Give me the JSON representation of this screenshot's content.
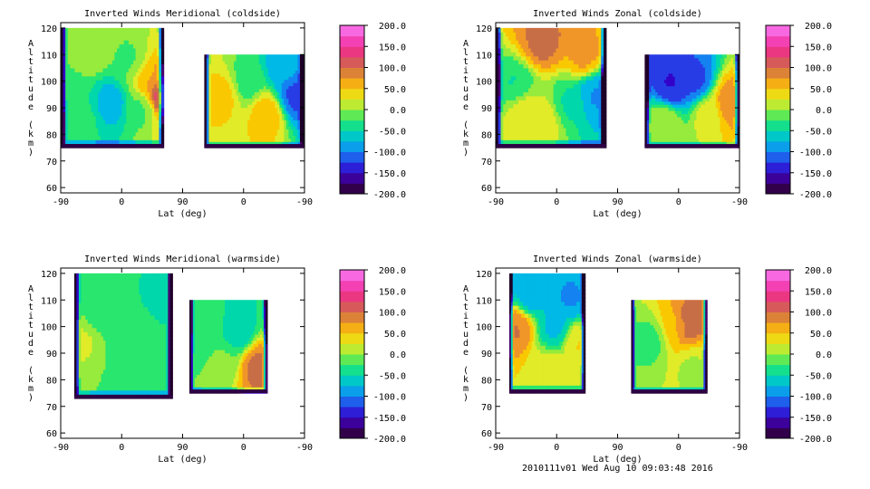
{
  "footer_text": "2010111v01 Wed Aug 10 09:03:48 2016",
  "chart_data": [
    {
      "type": "heatmap",
      "title": "Inverted Winds Meridional (coldside)",
      "xlabel": "Lat (deg)",
      "ylabel": "Altitude (km)",
      "x_ticks": [
        "-90",
        "0",
        "90",
        "0",
        "-90"
      ],
      "y_ticks": [
        "60",
        "70",
        "80",
        "90",
        "100",
        "110",
        "120"
      ],
      "ylim": [
        58,
        122
      ],
      "colorbar_ticks": [
        "200.0",
        "150.0",
        "100.0",
        "50.0",
        "0.0",
        "-50.0",
        "-100.0",
        "-150.0",
        "-200.0"
      ],
      "colorbar_range": [
        -200,
        200
      ],
      "regions": [
        {
          "x_range": [
            -90,
            62
          ],
          "y_range": [
            75,
            120
          ],
          "blobs": [
            {
              "x": -82,
              "y": 96,
              "v": -20
            },
            {
              "x": -45,
              "y": 112,
              "v": 5
            },
            {
              "x": 10,
              "y": 108,
              "v": -15
            },
            {
              "x": -15,
              "y": 92,
              "v": -75
            },
            {
              "x": 30,
              "y": 90,
              "v": -20
            },
            {
              "x": -60,
              "y": 85,
              "v": -30
            },
            {
              "x": 42,
              "y": 100,
              "v": 60
            },
            {
              "x": 58,
              "y": 95,
              "v": 145
            }
          ]
        },
        {
          "x_range": [
            122,
            270
          ],
          "y_range": [
            75,
            110
          ],
          "blobs": [
            {
              "x": 150,
              "y": 95,
              "v": 45
            },
            {
              "x": 185,
              "y": 100,
              "v": -25
            },
            {
              "x": 215,
              "y": 88,
              "v": 55
            },
            {
              "x": 255,
              "y": 95,
              "v": -120
            },
            {
              "x": 240,
              "y": 105,
              "v": -80
            }
          ]
        }
      ]
    },
    {
      "type": "heatmap",
      "title": "Inverted Winds Zonal (coldside)",
      "xlabel": "Lat (deg)",
      "ylabel": "Altitude (km)",
      "x_ticks": [
        "-90",
        "0",
        "90",
        "0",
        "-90"
      ],
      "y_ticks": [
        "60",
        "70",
        "80",
        "90",
        "100",
        "110",
        "120"
      ],
      "ylim": [
        58,
        122
      ],
      "colorbar_ticks": [
        "200.0",
        "150.0",
        "100.0",
        "50.0",
        "0.0",
        "-50.0",
        "-100.0",
        "-150.0",
        "-200.0"
      ],
      "colorbar_range": [
        -200,
        200
      ],
      "regions": [
        {
          "x_range": [
            -90,
            73
          ],
          "y_range": [
            75,
            120
          ],
          "blobs": [
            {
              "x": -20,
              "y": 115,
              "v": 95
            },
            {
              "x": 40,
              "y": 110,
              "v": 70
            },
            {
              "x": -60,
              "y": 98,
              "v": -40
            },
            {
              "x": -50,
              "y": 90,
              "v": 30
            },
            {
              "x": 20,
              "y": 92,
              "v": -40
            },
            {
              "x": -20,
              "y": 85,
              "v": 25
            },
            {
              "x": 55,
              "y": 95,
              "v": -90
            }
          ]
        },
        {
          "x_range": [
            130,
            270
          ],
          "y_range": [
            75,
            110
          ],
          "blobs": [
            {
              "x": 170,
              "y": 98,
              "v": -140
            },
            {
              "x": 205,
              "y": 100,
              "v": -120
            },
            {
              "x": 225,
              "y": 88,
              "v": 25
            },
            {
              "x": 255,
              "y": 92,
              "v": 85
            },
            {
              "x": 160,
              "y": 85,
              "v": 10
            }
          ]
        }
      ]
    },
    {
      "type": "heatmap",
      "title": "Inverted Winds Meridional (warmside)",
      "xlabel": "Lat (deg)",
      "ylabel": "Altitude (km)",
      "x_ticks": [
        "-90",
        "0",
        "90",
        "0",
        "-90"
      ],
      "y_ticks": [
        "60",
        "70",
        "80",
        "90",
        "100",
        "110",
        "120"
      ],
      "ylim": [
        58,
        122
      ],
      "colorbar_ticks": [
        "200.0",
        "150.0",
        "100.0",
        "50.0",
        "0.0",
        "-50.0",
        "-100.0",
        "-150.0",
        "-200.0"
      ],
      "colorbar_range": [
        -200,
        200
      ],
      "regions": [
        {
          "x_range": [
            -70,
            75
          ],
          "y_range": [
            73,
            120
          ],
          "blobs": [
            {
              "x": -55,
              "y": 95,
              "v": 15
            },
            {
              "x": -30,
              "y": 105,
              "v": -35
            },
            {
              "x": 0,
              "y": 92,
              "v": -15
            },
            {
              "x": 30,
              "y": 100,
              "v": -35
            },
            {
              "x": 55,
              "y": 110,
              "v": -40
            },
            {
              "x": 20,
              "y": 80,
              "v": -30
            }
          ]
        },
        {
          "x_range": [
            100,
            215
          ],
          "y_range": [
            75,
            110
          ],
          "blobs": [
            {
              "x": 130,
              "y": 100,
              "v": -25
            },
            {
              "x": 170,
              "y": 98,
              "v": -60
            },
            {
              "x": 200,
              "y": 85,
              "v": 95
            },
            {
              "x": 150,
              "y": 88,
              "v": -10
            }
          ]
        }
      ]
    },
    {
      "type": "heatmap",
      "title": "Inverted Winds Zonal (warmside)",
      "xlabel": "Lat (deg)",
      "ylabel": "Altitude (km)",
      "x_ticks": [
        "-90",
        "0",
        "90",
        "0",
        "-90"
      ],
      "y_ticks": [
        "60",
        "70",
        "80",
        "90",
        "100",
        "110",
        "120"
      ],
      "ylim": [
        58,
        122
      ],
      "colorbar_ticks": [
        "200.0",
        "150.0",
        "100.0",
        "50.0",
        "0.0",
        "-50.0",
        "-100.0",
        "-150.0",
        "-200.0"
      ],
      "colorbar_range": [
        -200,
        200
      ],
      "regions": [
        {
          "x_range": [
            -70,
            42
          ],
          "y_range": [
            75,
            120
          ],
          "blobs": [
            {
              "x": -60,
              "y": 100,
              "v": 90
            },
            {
              "x": -40,
              "y": 112,
              "v": -80
            },
            {
              "x": 0,
              "y": 100,
              "v": -70
            },
            {
              "x": -10,
              "y": 83,
              "v": 30
            },
            {
              "x": 30,
              "y": 95,
              "v": 40
            },
            {
              "x": 20,
              "y": 110,
              "v": -90
            }
          ]
        },
        {
          "x_range": [
            110,
            222
          ],
          "y_range": [
            75,
            110
          ],
          "blobs": [
            {
              "x": 140,
              "y": 95,
              "v": -20
            },
            {
              "x": 175,
              "y": 100,
              "v": 45
            },
            {
              "x": 190,
              "y": 101,
              "v": 110
            },
            {
              "x": 200,
              "y": 85,
              "v": 10
            }
          ]
        }
      ]
    }
  ]
}
